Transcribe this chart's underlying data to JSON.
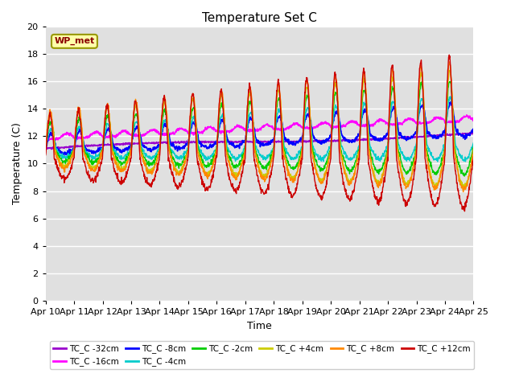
{
  "title": "Temperature Set C",
  "ylabel": "Temperature (C)",
  "xlabel": "Time",
  "ylim": [
    0,
    20
  ],
  "background_color": "#e0e0e0",
  "grid_color": "#ffffff",
  "annotation_label": "WP_met",
  "series": [
    {
      "label": "TC_C -32cm",
      "color": "#9900cc"
    },
    {
      "label": "TC_C -16cm",
      "color": "#ff00ff"
    },
    {
      "label": "TC_C -8cm",
      "color": "#0000ff"
    },
    {
      "label": "TC_C -4cm",
      "color": "#00cccc"
    },
    {
      "label": "TC_C -2cm",
      "color": "#00cc00"
    },
    {
      "label": "TC_C +4cm",
      "color": "#cccc00"
    },
    {
      "label": "TC_C +8cm",
      "color": "#ff8800"
    },
    {
      "label": "TC_C +12cm",
      "color": "#cc0000"
    }
  ],
  "x_tick_labels": [
    "Apr 10",
    "Apr 11",
    "Apr 12",
    "Apr 13",
    "Apr 14",
    "Apr 15",
    "Apr 16",
    "Apr 17",
    "Apr 18",
    "Apr 19",
    "Apr 20",
    "Apr 21",
    "Apr 22",
    "Apr 23",
    "Apr 24",
    "Apr 25"
  ]
}
